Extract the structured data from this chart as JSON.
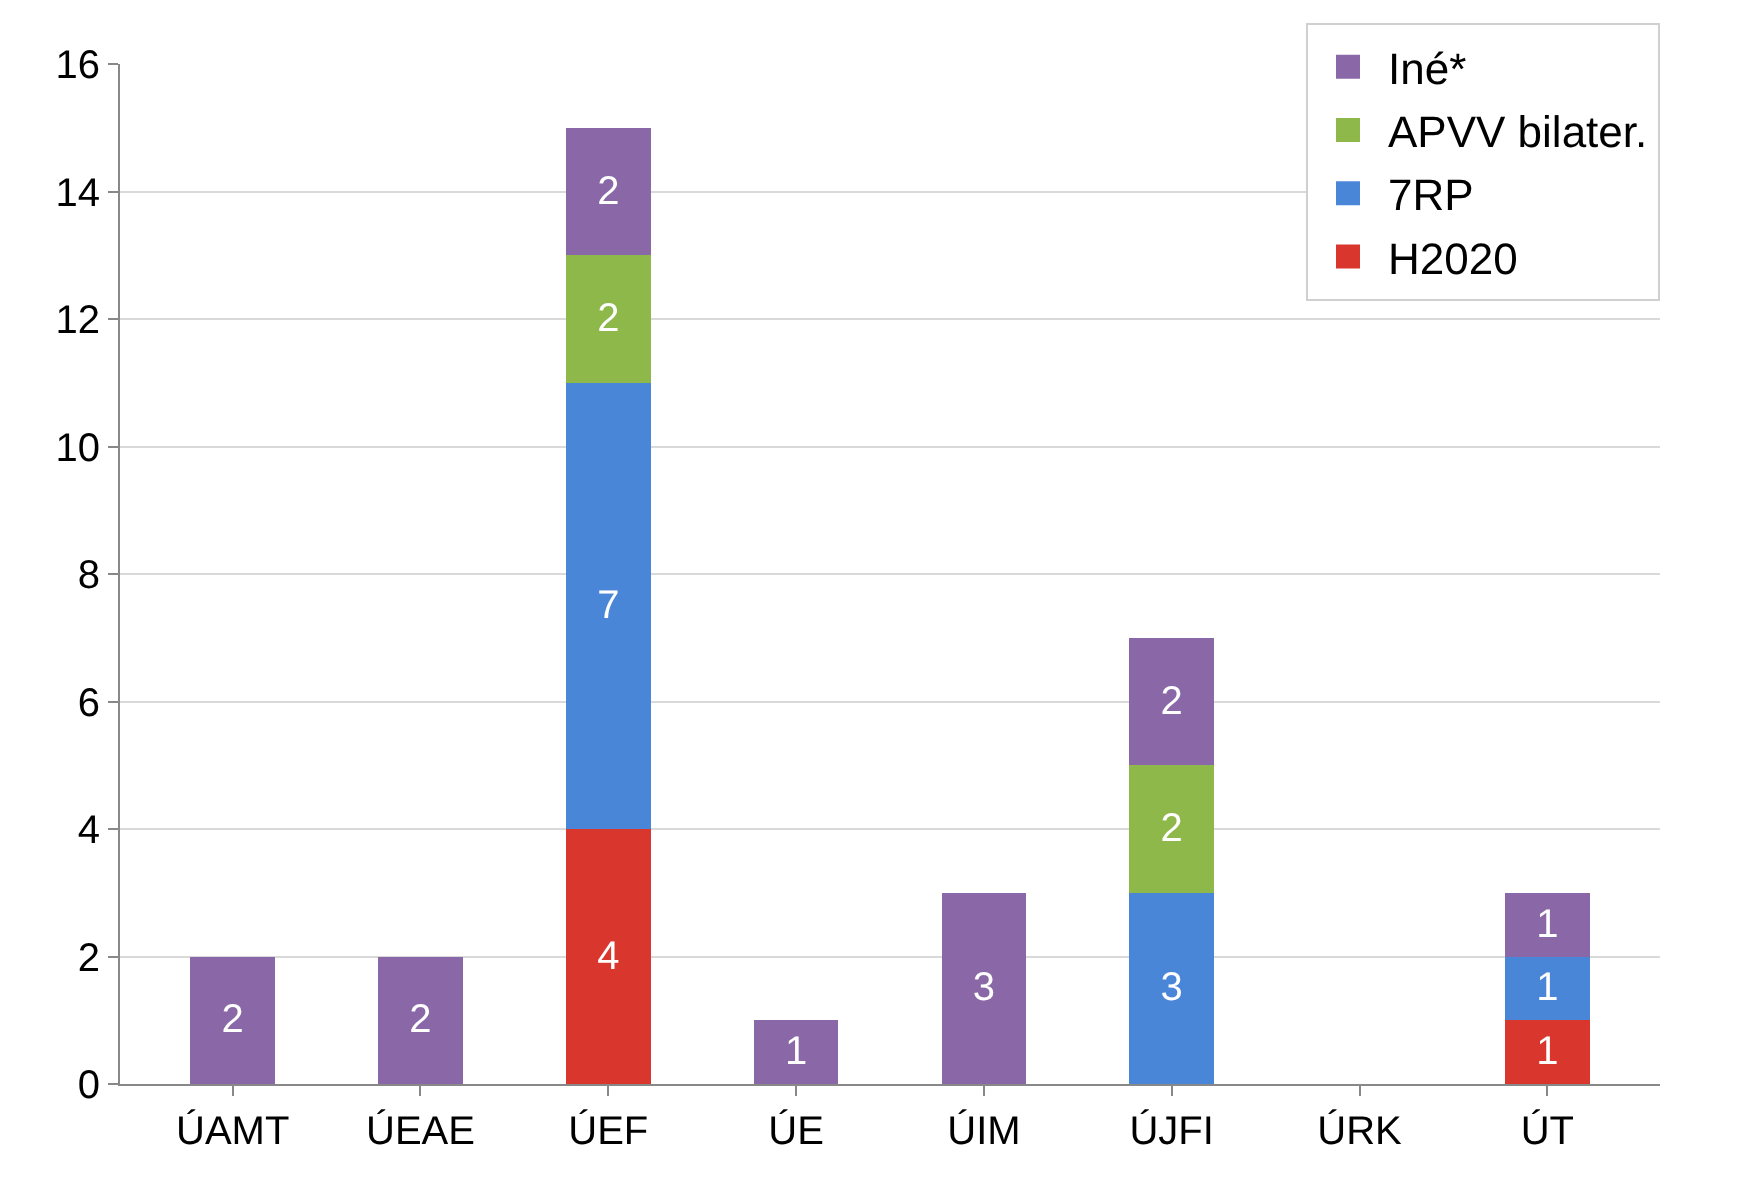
{
  "chart_data": {
    "type": "bar",
    "stacked": true,
    "categories": [
      "ÚAMT",
      "ÚEAE",
      "ÚEF",
      "ÚE",
      "ÚIM",
      "ÚJFI",
      "ÚRK",
      "ÚT"
    ],
    "series": [
      {
        "name": "H2020",
        "color": "#d9372d",
        "values": [
          null,
          null,
          4,
          null,
          null,
          null,
          null,
          1
        ]
      },
      {
        "name": "7RP",
        "color": "#4a86d8",
        "values": [
          null,
          null,
          7,
          null,
          null,
          3,
          null,
          1
        ]
      },
      {
        "name": "APVV bilater.",
        "color": "#8fb84a",
        "values": [
          null,
          null,
          2,
          null,
          null,
          2,
          null,
          null
        ]
      },
      {
        "name": "Iné*",
        "color": "#8a68a8",
        "values": [
          2,
          2,
          2,
          1,
          3,
          2,
          null,
          1
        ]
      }
    ],
    "ylim": [
      0,
      16
    ],
    "yticks": [
      0,
      2,
      4,
      6,
      8,
      10,
      12,
      14,
      16
    ],
    "grid": "y",
    "legend": "top right",
    "data_labels": true
  }
}
